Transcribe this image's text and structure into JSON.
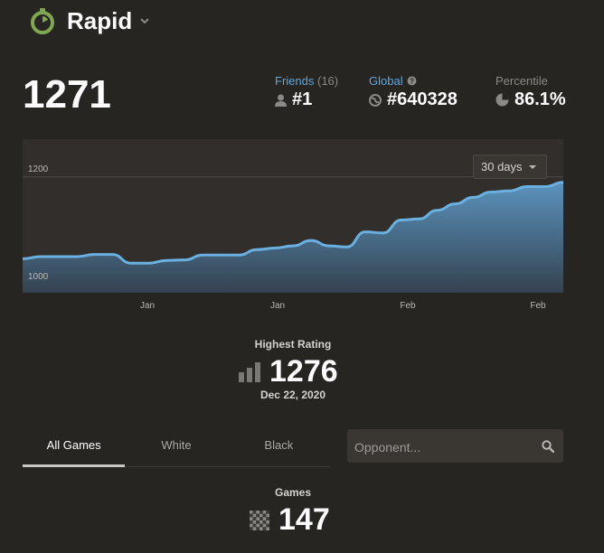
{
  "header": {
    "title": "Rapid",
    "icon": "stopwatch-icon",
    "accent": "#7fa650"
  },
  "rating": "1271",
  "stats": {
    "friends": {
      "label": "Friends",
      "count": "(16)",
      "value": "#1",
      "icon": "person-icon"
    },
    "global": {
      "label": "Global",
      "value": "#640328",
      "icon": "globe-icon",
      "help_icon": "help-icon"
    },
    "percentile": {
      "label": "Percentile",
      "value": "86.1%",
      "icon": "pie-icon"
    }
  },
  "chart": {
    "range_select": "30 days",
    "line_color": "#6ab0e0"
  },
  "chart_data": {
    "type": "area",
    "y_ticks": [
      "1000",
      "1200"
    ],
    "x_ticks": [
      "Jan",
      "Jan",
      "Feb",
      "Feb"
    ],
    "ylim": [
      985,
      1270
    ],
    "values": [
      1048,
      1052,
      1052,
      1052,
      1056,
      1056,
      1040,
      1040,
      1045,
      1046,
      1055,
      1055,
      1055,
      1065,
      1068,
      1072,
      1082,
      1072,
      1070,
      1098,
      1096,
      1120,
      1122,
      1138,
      1150,
      1162,
      1172,
      1174,
      1182,
      1182,
      1190
    ],
    "grid": true
  },
  "highest": {
    "label": "Highest Rating",
    "value": "1276",
    "date": "Dec 22, 2020",
    "icon": "bar-chart-icon"
  },
  "tabs": [
    {
      "label": "All Games",
      "active": true
    },
    {
      "label": "White",
      "active": false
    },
    {
      "label": "Black",
      "active": false
    }
  ],
  "opponent": {
    "placeholder": "Opponent...",
    "icon": "search-icon"
  },
  "games": {
    "label": "Games",
    "value": "147",
    "icon": "chessboard-icon"
  }
}
